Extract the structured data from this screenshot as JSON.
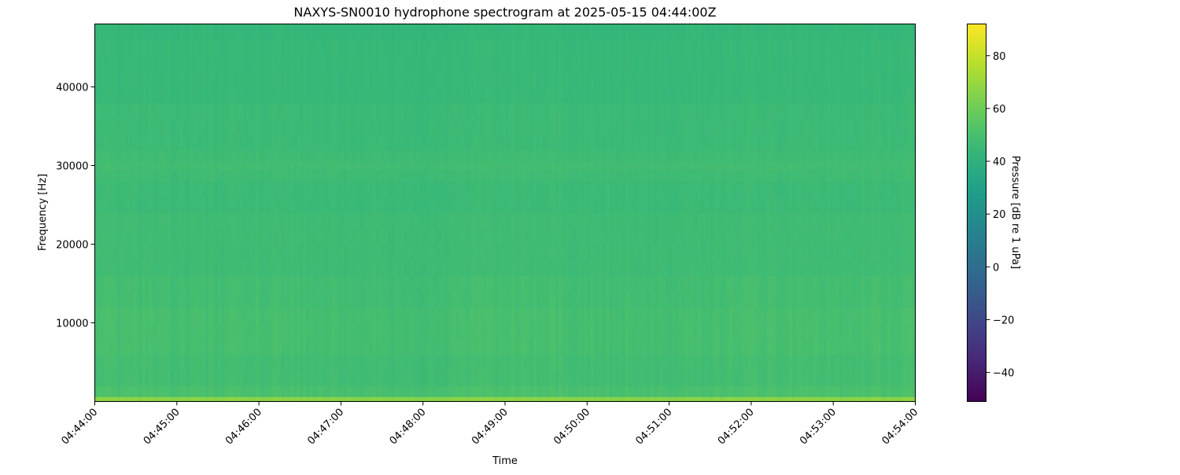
{
  "chart_data": {
    "type": "heatmap",
    "title": "NAXYS-SN0010 hydrophone spectrogram at 2025-05-15 04:44:00Z",
    "xlabel": "Time",
    "ylabel": "Frequency [Hz]",
    "colorbar_label": "Pressure [dB re 1 uPa]",
    "colormap": "viridis",
    "xlim": [
      "04:44:00",
      "04:54:00"
    ],
    "ylim": [
      0,
      48000
    ],
    "clim": [
      -51,
      92
    ],
    "x_ticks": [
      "04:44:00",
      "04:45:00",
      "04:46:00",
      "04:47:00",
      "04:48:00",
      "04:49:00",
      "04:50:00",
      "04:51:00",
      "04:52:00",
      "04:53:00",
      "04:54:00"
    ],
    "y_ticks": [
      10000,
      20000,
      30000,
      40000
    ],
    "y_tick_labels": [
      "10000",
      "20000",
      "30000",
      "40000"
    ],
    "colorbar_ticks": [
      -40,
      -20,
      0,
      20,
      40,
      60,
      80
    ],
    "colorbar_tick_labels": [
      "−40",
      "−20",
      "0",
      "20",
      "40",
      "60",
      "80"
    ],
    "frequency_hz": [
      250,
      1000,
      3000,
      5000,
      7000,
      9000,
      11000,
      13000,
      15000,
      17000,
      19000,
      21000,
      23000,
      25000,
      27000,
      29000,
      30000,
      31000,
      33000,
      35000,
      37000,
      39000,
      41000,
      43000,
      45000,
      47000
    ],
    "mean_level_db": [
      66,
      50,
      48,
      48,
      49,
      49,
      49,
      48,
      48,
      47,
      47,
      47,
      47,
      46,
      46,
      47,
      48,
      47,
      46,
      46,
      46,
      45,
      45,
      45,
      45,
      44
    ],
    "time_minutes": [
      "04:44:00",
      "04:45:00",
      "04:46:00",
      "04:47:00",
      "04:48:00",
      "04:49:00",
      "04:50:00",
      "04:51:00",
      "04:52:00",
      "04:53:00",
      "04:54:00"
    ],
    "time_level_offset_db": [
      1,
      0,
      0.5,
      0,
      -0.5,
      1,
      0.5,
      -0.5,
      1,
      0.5,
      1
    ],
    "grid": false
  }
}
